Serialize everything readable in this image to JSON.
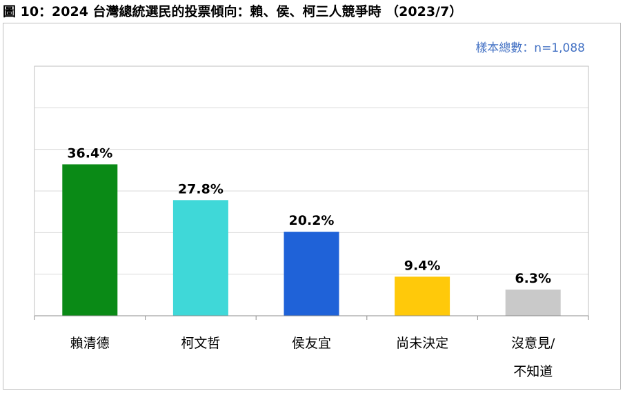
{
  "title": "圖 10：2024 台灣總統選民的投票傾向：賴、侯、柯三人競爭時 （2023/7）",
  "sample_note": "樣本總數：n=1,088",
  "chart_data": {
    "type": "bar",
    "title": "2024 台灣總統選民的投票傾向：賴、侯、柯三人競爭時 （2023/7）",
    "categories": [
      "賴清德",
      "柯文哲",
      "侯友宜",
      "尚未決定",
      "沒意見/不知道"
    ],
    "category_lines": [
      [
        "賴清德"
      ],
      [
        "柯文哲"
      ],
      [
        "侯友宜"
      ],
      [
        "尚未決定"
      ],
      [
        "沒意見/",
        "不知道"
      ]
    ],
    "values": [
      36.4,
      27.8,
      20.2,
      9.4,
      6.3
    ],
    "value_labels": [
      "36.4%",
      "27.8%",
      "20.2%",
      "9.4%",
      "6.3%"
    ],
    "colors": [
      "#0a8a16",
      "#3fd8d8",
      "#1f62d8",
      "#ffc90a",
      "#c9c9c9"
    ],
    "unit": "%",
    "ylim": [
      0,
      60
    ],
    "grid": true,
    "y_ticks_shown": false,
    "legend": "none"
  }
}
